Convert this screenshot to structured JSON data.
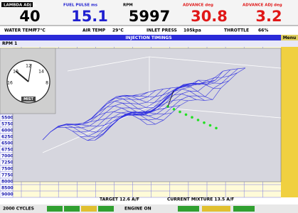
{
  "gauges": [
    {
      "label": "LAMBDA ADJ %",
      "value": "40"
    },
    {
      "label": "FUEL PULSE ms",
      "value": "15.1"
    },
    {
      "label": "RPM",
      "value": "5997"
    },
    {
      "label": "ADVANCE deg",
      "value": "30.8"
    },
    {
      "label": "ADVANCE ADJ deg",
      "value": "3.2"
    }
  ],
  "status": [
    {
      "label": "WATER TEMP",
      "value": "77°C"
    },
    {
      "label": "AIR TEMP",
      "value": "29°C"
    },
    {
      "label": "INLET PRESS",
      "value": "105kpa"
    },
    {
      "label": "THROTTLE",
      "value": "66%"
    }
  ],
  "panel": {
    "title": "INJECTION TIMINGS",
    "menu": "Menu",
    "row_label": "RPM 1"
  },
  "rpm_rows": [
    "5500",
    "5750",
    "6000",
    "6250",
    "6500",
    "6750",
    "7000",
    "7250",
    "7500",
    "7750",
    "8000",
    "8500",
    "9000"
  ],
  "clock": {
    "ticks": [
      "12",
      "10",
      "14",
      "16",
      "8"
    ],
    "label": "MIST"
  },
  "footer": {
    "target": "TARGET 12.6 A/F",
    "mixture": "CURRENT MIXTURE 13.5 A/F",
    "cycles": "2000 CYCLES",
    "engine": "ENGINE ON"
  }
}
